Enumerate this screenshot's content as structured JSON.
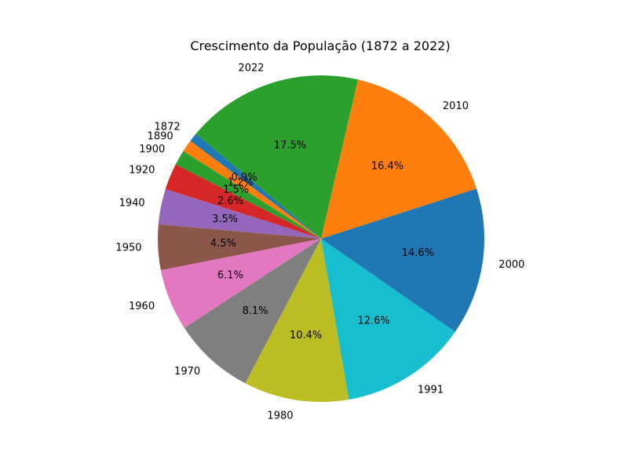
{
  "chart_data": {
    "type": "pie",
    "title": "Crescimento da População (1872 a 2022)",
    "categories": [
      "1872",
      "1890",
      "1900",
      "1920",
      "1940",
      "1950",
      "1960",
      "1970",
      "1980",
      "1991",
      "2000",
      "2010",
      "2022"
    ],
    "values": [
      0.9,
      1.2,
      1.5,
      2.6,
      3.5,
      4.5,
      6.1,
      8.1,
      10.4,
      12.6,
      14.6,
      16.4,
      17.5
    ],
    "value_labels": [
      "0.9%",
      "1.2%",
      "1.5%",
      "2.6%",
      "3.5%",
      "4.5%",
      "6.1%",
      "8.1%",
      "10.4%",
      "12.6%",
      "14.6%",
      "16.4%",
      "17.5%"
    ],
    "colors": [
      "#1f77b4",
      "#ff7f0e",
      "#2ca02c",
      "#d62728",
      "#9467bd",
      "#8c564b",
      "#e377c2",
      "#7f7f7f",
      "#bcbd22",
      "#17becf",
      "#1f77b4",
      "#ff7f0e",
      "#2ca02c"
    ],
    "start_angle_deg": 140,
    "direction": "counterclockwise",
    "legend": "none"
  }
}
